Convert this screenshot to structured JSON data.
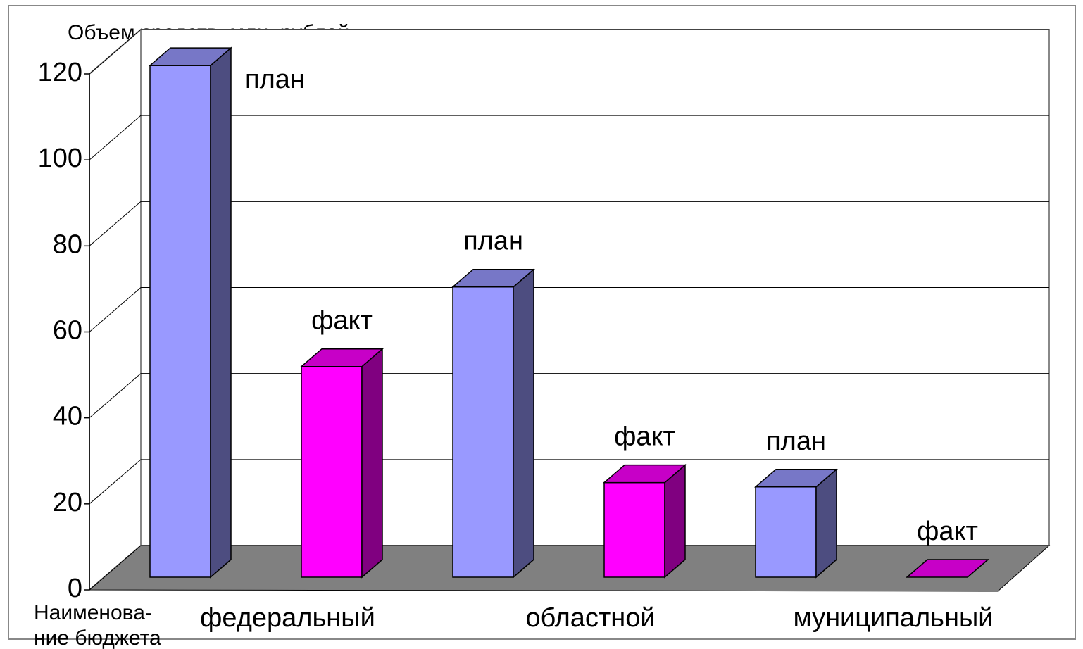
{
  "chart_data": {
    "type": "bar3d",
    "y_label": "Объем средств, млн. рублей",
    "x_label": [
      "Наименова-",
      "ние бюджета"
    ],
    "categories": [
      "федеральный",
      "областной",
      "муниципальный"
    ],
    "series": [
      {
        "name": "план",
        "color": "#9999ff",
        "values": [
          119,
          67.5,
          21
        ]
      },
      {
        "name": "факт",
        "color": "#ff00ff",
        "values": [
          49,
          22,
          0
        ]
      }
    ],
    "ylim": [
      0,
      120
    ],
    "yticks": [
      0,
      20,
      40,
      60,
      80,
      100,
      120
    ],
    "grid": true
  }
}
